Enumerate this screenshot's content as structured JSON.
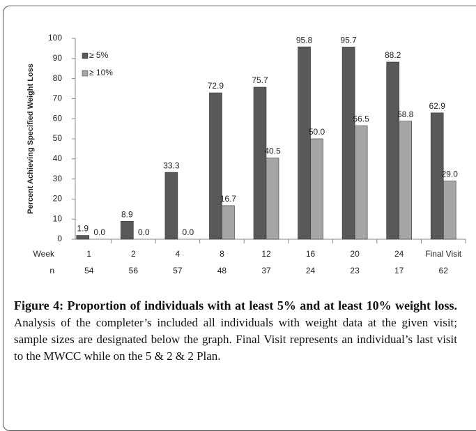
{
  "chart_data": {
    "type": "bar",
    "y_label": "Percent Achieving Specified Weight Loss",
    "category_axis_label": "Week",
    "categories": [
      "1",
      "2",
      "4",
      "8",
      "12",
      "16",
      "20",
      "24",
      "Final Visit"
    ],
    "n_label": "n",
    "n_values": [
      54,
      56,
      57,
      48,
      37,
      24,
      23,
      17,
      62
    ],
    "series": [
      {
        "name": "≥ 5%",
        "color": "#595959",
        "values": [
          1.9,
          8.9,
          33.3,
          72.9,
          75.7,
          95.8,
          95.7,
          88.2,
          62.9
        ],
        "value_labels": [
          "1.9",
          "8.9",
          "33.3",
          "72.9",
          "75.7",
          "95.8",
          "95.7",
          "88.2",
          "62.9"
        ]
      },
      {
        "name": "≥ 10%",
        "color": "#a6a6a6",
        "values": [
          0,
          0,
          0,
          16.7,
          40.5,
          50,
          56.5,
          58.8,
          29
        ],
        "value_labels": [
          "0.0",
          "0.0",
          "0.0",
          "16.7",
          "40.5",
          "50.0",
          "56.5",
          "58.8",
          "29.0"
        ]
      }
    ],
    "ylim": [
      0,
      100
    ],
    "yticks": [
      0,
      10,
      20,
      30,
      40,
      50,
      60,
      70,
      80,
      90,
      100
    ],
    "grid": false,
    "legend": "top-left"
  },
  "caption": {
    "label": "Figure 4: Proportion of individuals with at least 5% and at least 10% weight loss.",
    "text": "Analysis of the completer’s included all individuals with weight data at the given visit; sample sizes are designated below the graph. Final Visit represents an individual’s last visit to the MWCC while on the 5 & 2 & 2 Plan."
  }
}
